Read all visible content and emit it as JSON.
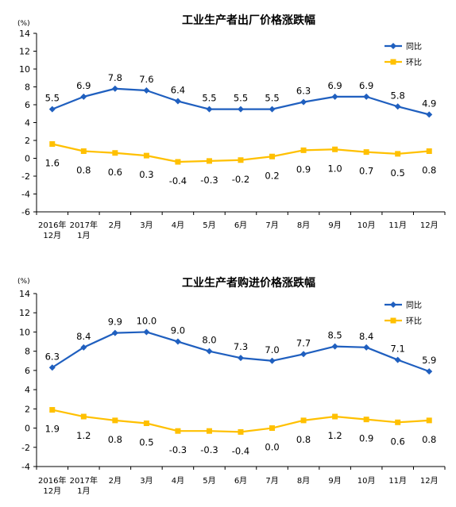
{
  "chart_data": [
    {
      "type": "line",
      "title": "工业生产者出厂价格涨跌幅",
      "unit": "(%)",
      "ylim": [
        -6,
        14
      ],
      "yticks": [
        "14",
        "12",
        "10",
        "8",
        "6",
        "4",
        "2",
        "0",
        "-2",
        "-4",
        "-6"
      ],
      "categories": [
        [
          "2016年",
          "12月"
        ],
        [
          "2017年",
          "1月"
        ],
        [
          "2月"
        ],
        [
          "3月"
        ],
        [
          "4月"
        ],
        [
          "5月"
        ],
        [
          "6月"
        ],
        [
          "7月"
        ],
        [
          "8月"
        ],
        [
          "9月"
        ],
        [
          "10月"
        ],
        [
          "11月"
        ],
        [
          "12月"
        ]
      ],
      "series": [
        {
          "name": "同比",
          "color": "#1f5fbf",
          "marker": "diamond",
          "values": [
            5.5,
            6.9,
            7.8,
            7.6,
            6.4,
            5.5,
            5.5,
            5.5,
            6.3,
            6.9,
            6.9,
            5.8,
            4.9
          ],
          "labels": [
            "5.5",
            "6.9",
            "7.8",
            "7.6",
            "6.4",
            "5.5",
            "5.5",
            "5.5",
            "6.3",
            "6.9",
            "6.9",
            "5.8",
            "4.9"
          ],
          "label_pos": "above"
        },
        {
          "name": "环比",
          "color": "#ffc000",
          "marker": "square",
          "values": [
            1.6,
            0.8,
            0.6,
            0.3,
            -0.4,
            -0.3,
            -0.2,
            0.2,
            0.9,
            1.0,
            0.7,
            0.5,
            0.8
          ],
          "labels": [
            "1.6",
            "0.8",
            "0.6",
            "0.3",
            "-0.4",
            "-0.3",
            "-0.2",
            "0.2",
            "0.9",
            "1.0",
            "0.7",
            "0.5",
            "0.8"
          ],
          "label_pos": "below"
        }
      ],
      "legend": "top-right"
    },
    {
      "type": "line",
      "title": "工业生产者购进价格涨跌幅",
      "unit": "(%)",
      "ylim": [
        -4,
        14
      ],
      "yticks": [
        "14",
        "12",
        "10",
        "8",
        "6",
        "4",
        "2",
        "0",
        "-2",
        "-4"
      ],
      "categories": [
        [
          "2016年",
          "12月"
        ],
        [
          "2017年",
          "1月"
        ],
        [
          "2月"
        ],
        [
          "3月"
        ],
        [
          "4月"
        ],
        [
          "5月"
        ],
        [
          "6月"
        ],
        [
          "7月"
        ],
        [
          "8月"
        ],
        [
          "9月"
        ],
        [
          "10月"
        ],
        [
          "11月"
        ],
        [
          "12月"
        ]
      ],
      "series": [
        {
          "name": "同比",
          "color": "#1f5fbf",
          "marker": "diamond",
          "values": [
            6.3,
            8.4,
            9.9,
            10.0,
            9.0,
            8.0,
            7.3,
            7.0,
            7.7,
            8.5,
            8.4,
            7.1,
            5.9
          ],
          "labels": [
            "6.3",
            "8.4",
            "9.9",
            "10.0",
            "9.0",
            "8.0",
            "7.3",
            "7.0",
            "7.7",
            "8.5",
            "8.4",
            "7.1",
            "5.9"
          ],
          "label_pos": "above"
        },
        {
          "name": "环比",
          "color": "#ffc000",
          "marker": "square",
          "values": [
            1.9,
            1.2,
            0.8,
            0.5,
            -0.3,
            -0.3,
            -0.4,
            0.0,
            0.8,
            1.2,
            0.9,
            0.6,
            0.8
          ],
          "labels": [
            "1.9",
            "1.2",
            "0.8",
            "0.5",
            "-0.3",
            "-0.3",
            "-0.4",
            "0.0",
            "0.8",
            "1.2",
            "0.9",
            "0.6",
            "0.8"
          ],
          "label_pos": "below"
        }
      ],
      "legend": "top-right"
    }
  ]
}
